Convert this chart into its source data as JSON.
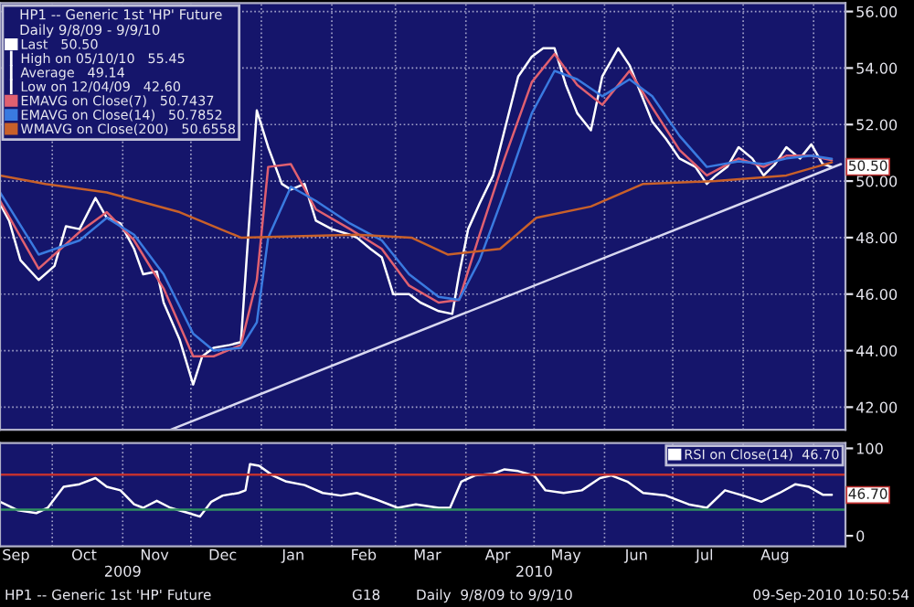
{
  "chart_data": [
    {
      "type": "line",
      "legend_title": "HP1 -- Generic 1st 'HP' Future\nDaily 9/8/09 - 9/9/10",
      "legend": "top left",
      "grid": true,
      "tick_labels": "y",
      "xlim": [
        "2009-09-08",
        "2010-09-15"
      ],
      "ylim": [
        41.2,
        56.3
      ],
      "xticks": [
        {
          "value": "2009-10-01",
          "label": null
        },
        {
          "value": "2009-11-01",
          "label": null
        },
        {
          "value": "2009-12-01",
          "label": null
        },
        {
          "value": "2010-01-01",
          "label": null
        },
        {
          "value": "2010-02-01",
          "label": null
        },
        {
          "value": "2010-03-01",
          "label": null
        },
        {
          "value": "2010-04-01",
          "label": null
        },
        {
          "value": "2010-05-01",
          "label": null
        },
        {
          "value": "2010-06-01",
          "label": null
        },
        {
          "value": "2010-07-01",
          "label": null
        },
        {
          "value": "2010-08-01",
          "label": null
        },
        {
          "value": "2010-09-01",
          "label": null
        }
      ],
      "yticks": [
        {
          "value": 42,
          "label": "42.00"
        },
        {
          "value": 44,
          "label": "44.00"
        },
        {
          "value": 46,
          "label": "46.00"
        },
        {
          "value": 48,
          "label": "48.00"
        },
        {
          "value": 50,
          "label": "50.00"
        },
        {
          "value": 52,
          "label": "52.00"
        },
        {
          "value": 54,
          "label": "54.00"
        },
        {
          "value": 56,
          "label": "56.00"
        }
      ],
      "annotations": [
        "High on 05/10/10   55.45",
        "Average   49.14",
        "Low on 12/04/09   42.60",
        {
          "text": "50.50",
          "x": "2010-09-09",
          "y": 50.5
        }
      ],
      "series": [
        {
          "name": "Last   50.50",
          "color": "#ffffff",
          "x": [
            "2009-09-08",
            "2009-09-12",
            "2009-09-17",
            "2009-09-25",
            "2009-10-02",
            "2009-10-07",
            "2009-10-13",
            "2009-10-20",
            "2009-10-25",
            "2009-10-31",
            "2009-11-06",
            "2009-11-10",
            "2009-11-16",
            "2009-11-19",
            "2009-11-26",
            "2009-12-02",
            "2009-12-06",
            "2009-12-11",
            "2009-12-18",
            "2009-12-23",
            "2009-12-30",
            "2010-01-04",
            "2010-01-10",
            "2010-01-14",
            "2010-01-20",
            "2010-01-25",
            "2010-02-01",
            "2010-02-09",
            "2010-02-12",
            "2010-02-18",
            "2010-02-23",
            "2010-02-28",
            "2010-03-07",
            "2010-03-12",
            "2010-03-20",
            "2010-03-26",
            "2010-03-29",
            "2010-04-02",
            "2010-04-07",
            "2010-04-13",
            "2010-04-18",
            "2010-04-24",
            "2010-04-30",
            "2010-05-05",
            "2010-05-10",
            "2010-05-15",
            "2010-05-20",
            "2010-05-26",
            "2010-05-31",
            "2010-06-07",
            "2010-06-12",
            "2010-06-17",
            "2010-06-22",
            "2010-06-28",
            "2010-07-04",
            "2010-07-11",
            "2010-07-16",
            "2010-07-20",
            "2010-07-25",
            "2010-07-30",
            "2010-08-05",
            "2010-08-10",
            "2010-08-15",
            "2010-08-20",
            "2010-08-26",
            "2010-08-31",
            "2010-09-05",
            "2010-09-09"
          ],
          "values": [
            49.2,
            48.6,
            47.2,
            46.5,
            47.0,
            48.4,
            48.3,
            49.4,
            48.7,
            48.5,
            47.6,
            46.7,
            46.8,
            45.7,
            44.4,
            42.8,
            43.8,
            44.1,
            44.2,
            44.3,
            52.5,
            51.2,
            49.9,
            49.7,
            49.9,
            48.6,
            48.3,
            48.1,
            48.0,
            47.6,
            47.3,
            46.0,
            46.0,
            45.7,
            45.4,
            45.3,
            46.7,
            48.3,
            49.2,
            50.2,
            51.8,
            53.7,
            54.4,
            54.7,
            54.7,
            53.4,
            52.4,
            51.8,
            53.7,
            54.7,
            54.1,
            53.1,
            52.1,
            51.5,
            50.8,
            50.5,
            49.9,
            50.2,
            50.5,
            51.2,
            50.8,
            50.2,
            50.6,
            51.2,
            50.8,
            51.3,
            50.6,
            50.5
          ]
        },
        {
          "name": "EMAVG on Close(7)   50.7437",
          "color": "#e06070",
          "x": [
            "2009-09-08",
            "2009-09-25",
            "2009-10-13",
            "2009-10-25",
            "2009-11-06",
            "2009-11-19",
            "2009-12-02",
            "2009-12-11",
            "2009-12-23",
            "2009-12-30",
            "2010-01-04",
            "2010-01-14",
            "2010-01-25",
            "2010-02-09",
            "2010-02-23",
            "2010-03-07",
            "2010-03-20",
            "2010-03-29",
            "2010-04-07",
            "2010-04-18",
            "2010-04-30",
            "2010-05-10",
            "2010-05-20",
            "2010-05-31",
            "2010-06-12",
            "2010-06-22",
            "2010-07-04",
            "2010-07-16",
            "2010-07-30",
            "2010-08-10",
            "2010-08-20",
            "2010-08-31",
            "2010-09-09"
          ],
          "values": [
            49.3,
            46.9,
            48.2,
            48.9,
            47.9,
            46.2,
            43.8,
            43.8,
            44.2,
            46.5,
            50.5,
            50.6,
            49.0,
            48.3,
            47.6,
            46.3,
            45.7,
            45.8,
            48.1,
            50.8,
            53.5,
            54.5,
            53.4,
            52.7,
            53.9,
            52.6,
            51.1,
            50.2,
            50.8,
            50.5,
            50.9,
            50.9,
            50.74
          ]
        },
        {
          "name": "EMAVG on Close(14)   50.7852",
          "color": "#3a7ae0",
          "x": [
            "2009-09-08",
            "2009-09-25",
            "2009-10-13",
            "2009-10-25",
            "2009-11-06",
            "2009-11-19",
            "2009-12-02",
            "2009-12-11",
            "2009-12-23",
            "2009-12-30",
            "2010-01-04",
            "2010-01-14",
            "2010-01-25",
            "2010-02-09",
            "2010-02-23",
            "2010-03-07",
            "2010-03-20",
            "2010-03-29",
            "2010-04-07",
            "2010-04-18",
            "2010-04-30",
            "2010-05-10",
            "2010-05-20",
            "2010-05-31",
            "2010-06-12",
            "2010-06-22",
            "2010-07-04",
            "2010-07-16",
            "2010-07-30",
            "2010-08-10",
            "2010-08-20",
            "2010-08-31",
            "2010-09-09"
          ],
          "values": [
            49.6,
            47.4,
            47.9,
            48.7,
            48.1,
            46.7,
            44.6,
            44.0,
            44.1,
            45.0,
            48.0,
            49.8,
            49.3,
            48.5,
            47.9,
            46.7,
            45.9,
            45.8,
            47.2,
            49.6,
            52.4,
            53.9,
            53.6,
            53.0,
            53.6,
            53.0,
            51.6,
            50.5,
            50.7,
            50.6,
            50.8,
            50.9,
            50.79
          ]
        },
        {
          "name": "WMAVG on Close(200)   50.6558",
          "color": "#c8602a",
          "x": [
            "2009-09-08",
            "2009-09-28",
            "2009-10-25",
            "2009-11-26",
            "2009-12-23",
            "2010-02-12",
            "2010-03-08",
            "2010-03-24",
            "2010-04-16",
            "2010-05-02",
            "2010-05-26",
            "2010-06-18",
            "2010-07-20",
            "2010-08-20",
            "2010-09-09"
          ],
          "values": [
            50.2,
            49.9,
            49.6,
            48.9,
            48.0,
            48.1,
            48.0,
            47.4,
            47.6,
            48.7,
            49.1,
            49.9,
            50.0,
            50.2,
            50.66
          ]
        },
        {
          "color": "#d8d8f0",
          "x": [
            "2009-11-22",
            "2010-09-13"
          ],
          "values": [
            41.2,
            50.6
          ]
        }
      ]
    },
    {
      "type": "line",
      "legend": "top right",
      "grid": "x",
      "xlim": [
        "2009-09-08",
        "2010-09-15"
      ],
      "ylim": [
        -12,
        106
      ],
      "xticks": [
        {
          "value": "2009-09-15",
          "label": "Sep"
        },
        {
          "value": "2009-10-01",
          "label": null
        },
        {
          "value": "2009-10-15",
          "label": "Oct"
        },
        {
          "value": "2009-11-01",
          "label": null
        },
        {
          "value": "2009-11-15",
          "label": "Nov"
        },
        {
          "value": "2009-12-01",
          "label": null
        },
        {
          "value": "2009-12-15",
          "label": "Dec"
        },
        {
          "value": "2010-01-01",
          "label": null
        },
        {
          "value": "2010-01-15",
          "label": "Jan"
        },
        {
          "value": "2010-02-01",
          "label": null
        },
        {
          "value": "2010-02-15",
          "label": "Feb"
        },
        {
          "value": "2010-03-01",
          "label": null
        },
        {
          "value": "2010-03-15",
          "label": "Mar"
        },
        {
          "value": "2010-04-01",
          "label": null
        },
        {
          "value": "2010-04-15",
          "label": "Apr"
        },
        {
          "value": "2010-05-01",
          "label": null
        },
        {
          "value": "2010-05-15",
          "label": "May"
        },
        {
          "value": "2010-06-01",
          "label": null
        },
        {
          "value": "2010-06-15",
          "label": "Jun"
        },
        {
          "value": "2010-07-01",
          "label": null
        },
        {
          "value": "2010-07-15",
          "label": "Jul"
        },
        {
          "value": "2010-08-01",
          "label": null
        },
        {
          "value": "2010-08-15",
          "label": "Aug"
        },
        {
          "value": "2010-09-01",
          "label": null
        }
      ],
      "x2lim": [
        "2009-09-08",
        "2010-09-15"
      ],
      "x2ticks": [
        {
          "value": "2009-11-01",
          "label": "2009"
        },
        {
          "value": "2010-05-01",
          "label": "2010"
        }
      ],
      "yticks": [
        0,
        100
      ],
      "ref_lines": [
        {
          "axis": "y",
          "value": 70,
          "color": "#c03030"
        },
        {
          "axis": "y",
          "value": 30,
          "color": "#2f8f5f"
        }
      ],
      "annotations": [
        "HP1 -- Generic 1st 'HP' Future",
        "G18",
        "Daily  9/8/09 to 9/9/10",
        "09-Sep-2010 10:50:54",
        {
          "text": "46.70",
          "x": "2010-09-09",
          "y": 46.7
        }
      ],
      "series": [
        {
          "name": "RSI on Close(14)  46.70",
          "color": "#ffffff",
          "x": [
            "2009-09-08",
            "2009-09-16",
            "2009-09-24",
            "2009-09-29",
            "2009-10-06",
            "2009-10-13",
            "2009-10-20",
            "2009-10-25",
            "2009-10-31",
            "2009-11-06",
            "2009-11-10",
            "2009-11-16",
            "2009-11-22",
            "2009-11-30",
            "2009-12-05",
            "2009-12-10",
            "2009-12-15",
            "2009-12-22",
            "2009-12-25",
            "2009-12-27",
            "2009-12-31",
            "2010-01-06",
            "2010-01-12",
            "2010-01-20",
            "2010-01-28",
            "2010-02-05",
            "2010-02-12",
            "2010-02-20",
            "2010-03-02",
            "2010-03-10",
            "2010-03-20",
            "2010-03-25",
            "2010-03-30",
            "2010-04-05",
            "2010-04-13",
            "2010-04-18",
            "2010-04-24",
            "2010-05-01",
            "2010-05-06",
            "2010-05-14",
            "2010-05-22",
            "2010-05-30",
            "2010-06-04",
            "2010-06-11",
            "2010-06-18",
            "2010-06-28",
            "2010-07-08",
            "2010-07-16",
            "2010-07-24",
            "2010-08-01",
            "2010-08-09",
            "2010-08-17",
            "2010-08-24",
            "2010-08-30",
            "2010-09-05",
            "2010-09-09"
          ],
          "values": [
            39,
            29,
            26,
            32,
            56,
            59,
            66,
            56,
            52,
            36,
            32,
            40,
            32,
            26,
            22,
            39,
            46,
            49,
            52,
            82,
            80,
            69,
            62,
            58,
            49,
            46,
            49,
            42,
            32,
            36,
            32,
            32,
            62,
            69,
            71,
            76,
            74,
            69,
            52,
            49,
            52,
            66,
            69,
            62,
            49,
            46,
            36,
            32,
            52,
            46,
            39,
            49,
            59,
            56,
            47,
            47
          ]
        }
      ]
    }
  ]
}
